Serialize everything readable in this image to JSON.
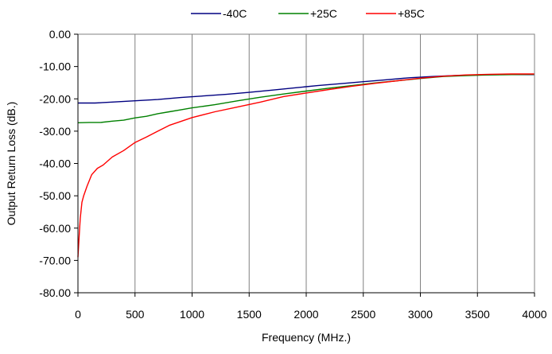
{
  "chart_data": {
    "type": "line",
    "title": "",
    "xlabel": "Frequency (MHz.)",
    "ylabel": "Output Return Loss (dB.)",
    "xlim": [
      0,
      4000
    ],
    "ylim": [
      -80,
      0
    ],
    "x_ticks": [
      0,
      500,
      1000,
      1500,
      2000,
      2500,
      3000,
      3500,
      4000
    ],
    "x_tick_labels": [
      "0",
      "500",
      "1000",
      "1500",
      "2000",
      "2500",
      "3000",
      "3500",
      "4000"
    ],
    "y_ticks": [
      0,
      -10,
      -20,
      -30,
      -40,
      -50,
      -60,
      -70,
      -80
    ],
    "y_tick_labels": [
      "0.00",
      "-10.00",
      "-20.00",
      "-30.00",
      "-40.00",
      "-50.00",
      "-60.00",
      "-70.00",
      "-80.00"
    ],
    "grid": "vertical",
    "legend_position": "top",
    "series": [
      {
        "name": "-40C",
        "color": "#000080",
        "x": [
          0,
          150,
          300,
          500,
          700,
          900,
          1100,
          1300,
          1500,
          1700,
          1900,
          2100,
          2300,
          2500,
          2700,
          2900,
          3100,
          3300,
          3500,
          3700,
          4000
        ],
        "y": [
          -21.3,
          -21.3,
          -21.0,
          -20.6,
          -20.2,
          -19.6,
          -19.1,
          -18.6,
          -18.0,
          -17.3,
          -16.6,
          -15.9,
          -15.3,
          -14.7,
          -14.1,
          -13.5,
          -13.1,
          -12.8,
          -12.6,
          -12.5,
          -12.5
        ]
      },
      {
        "name": "+25C",
        "color": "#008000",
        "x": [
          0,
          100,
          200,
          300,
          400,
          500,
          600,
          700,
          800,
          900,
          1000,
          1200,
          1400,
          1600,
          1800,
          2000,
          2200,
          2400,
          2600,
          2800,
          3000,
          3200,
          3400,
          3600,
          3800,
          4000
        ],
        "y": [
          -27.4,
          -27.3,
          -27.3,
          -26.9,
          -26.6,
          -25.9,
          -25.4,
          -24.6,
          -24.0,
          -23.4,
          -22.8,
          -21.8,
          -20.6,
          -19.5,
          -18.5,
          -17.6,
          -16.7,
          -15.9,
          -15.1,
          -14.4,
          -13.7,
          -13.1,
          -12.8,
          -12.6,
          -12.5,
          -12.4
        ]
      },
      {
        "name": "+85C",
        "color": "#ff0000",
        "x": [
          0,
          10,
          20,
          35,
          50,
          80,
          120,
          170,
          220,
          300,
          400,
          500,
          600,
          700,
          800,
          900,
          1000,
          1200,
          1400,
          1600,
          1800,
          2000,
          2200,
          2400,
          2600,
          2800,
          3000,
          3200,
          3400,
          3600,
          3800,
          4000
        ],
        "y": [
          -69.0,
          -63.0,
          -57.0,
          -52.0,
          -50.0,
          -47.0,
          -43.5,
          -41.5,
          -40.5,
          -38.0,
          -36.0,
          -33.5,
          -31.8,
          -30.0,
          -28.2,
          -27.0,
          -25.8,
          -24.0,
          -22.5,
          -21.0,
          -19.3,
          -18.2,
          -17.1,
          -16.1,
          -15.2,
          -14.4,
          -13.6,
          -13.0,
          -12.6,
          -12.4,
          -12.3,
          -12.3
        ]
      }
    ]
  }
}
